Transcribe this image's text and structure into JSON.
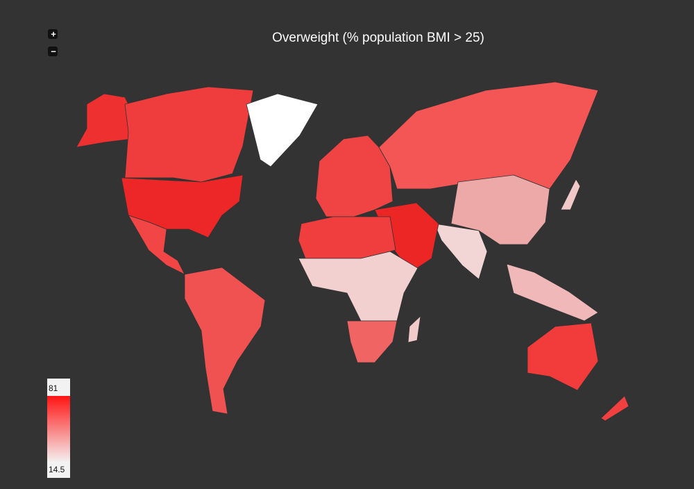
{
  "controls": {
    "zoom_in": "+",
    "zoom_out": "−"
  },
  "title": "Overweight (% population BMI > 25)",
  "legend": {
    "max": 81,
    "min": 14.5,
    "color_high": "#ff1414",
    "color_low": "#f4f0f0"
  }
}
